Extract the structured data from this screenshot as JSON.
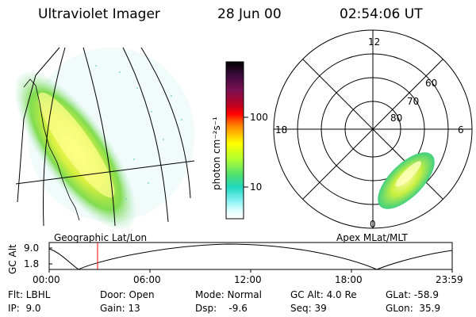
{
  "header": {
    "instrument": "Ultraviolet Imager",
    "date": "28 Jun 00",
    "time": "02:54:06 UT"
  },
  "left_panel": {
    "caption": "Geographic Lat/Lon"
  },
  "colorbar": {
    "unit_label": "photon cm⁻²s⁻¹",
    "ticks": [
      "100",
      "10"
    ],
    "colors": [
      "#000000",
      "#3a0a3a",
      "#7a1050",
      "#c00020",
      "#ff0000",
      "#ff7a00",
      "#ffc000",
      "#ffff00",
      "#b0ff30",
      "#50e070",
      "#20d8c0",
      "#80f0f0",
      "#e0ffff",
      "#ffffff"
    ]
  },
  "polar": {
    "caption": "Apex MLat/MLT",
    "mlt_labels": {
      "top": "12",
      "bottom": "0",
      "left": "18",
      "right": "6"
    },
    "lat_labels": [
      "60",
      "70",
      "80"
    ]
  },
  "altitude_plot": {
    "ylabel": "GC Alt",
    "yticks": [
      "9.0",
      "1.8"
    ],
    "xticks": [
      "00:00",
      "06:00",
      "12:00",
      "18:00",
      "23:59"
    ],
    "current_time_marker": "02:54"
  },
  "info": {
    "row1": [
      "Flt: LBHL",
      "Door: Open",
      "Mode: Normal",
      "GC Alt: 4.0 Re",
      "GLat: -58.9"
    ],
    "row2": [
      "IP:  9.0",
      "Gain: 13",
      "Dsp:    -9.6",
      "Seq: 39",
      "GLon:  35.9"
    ]
  }
}
